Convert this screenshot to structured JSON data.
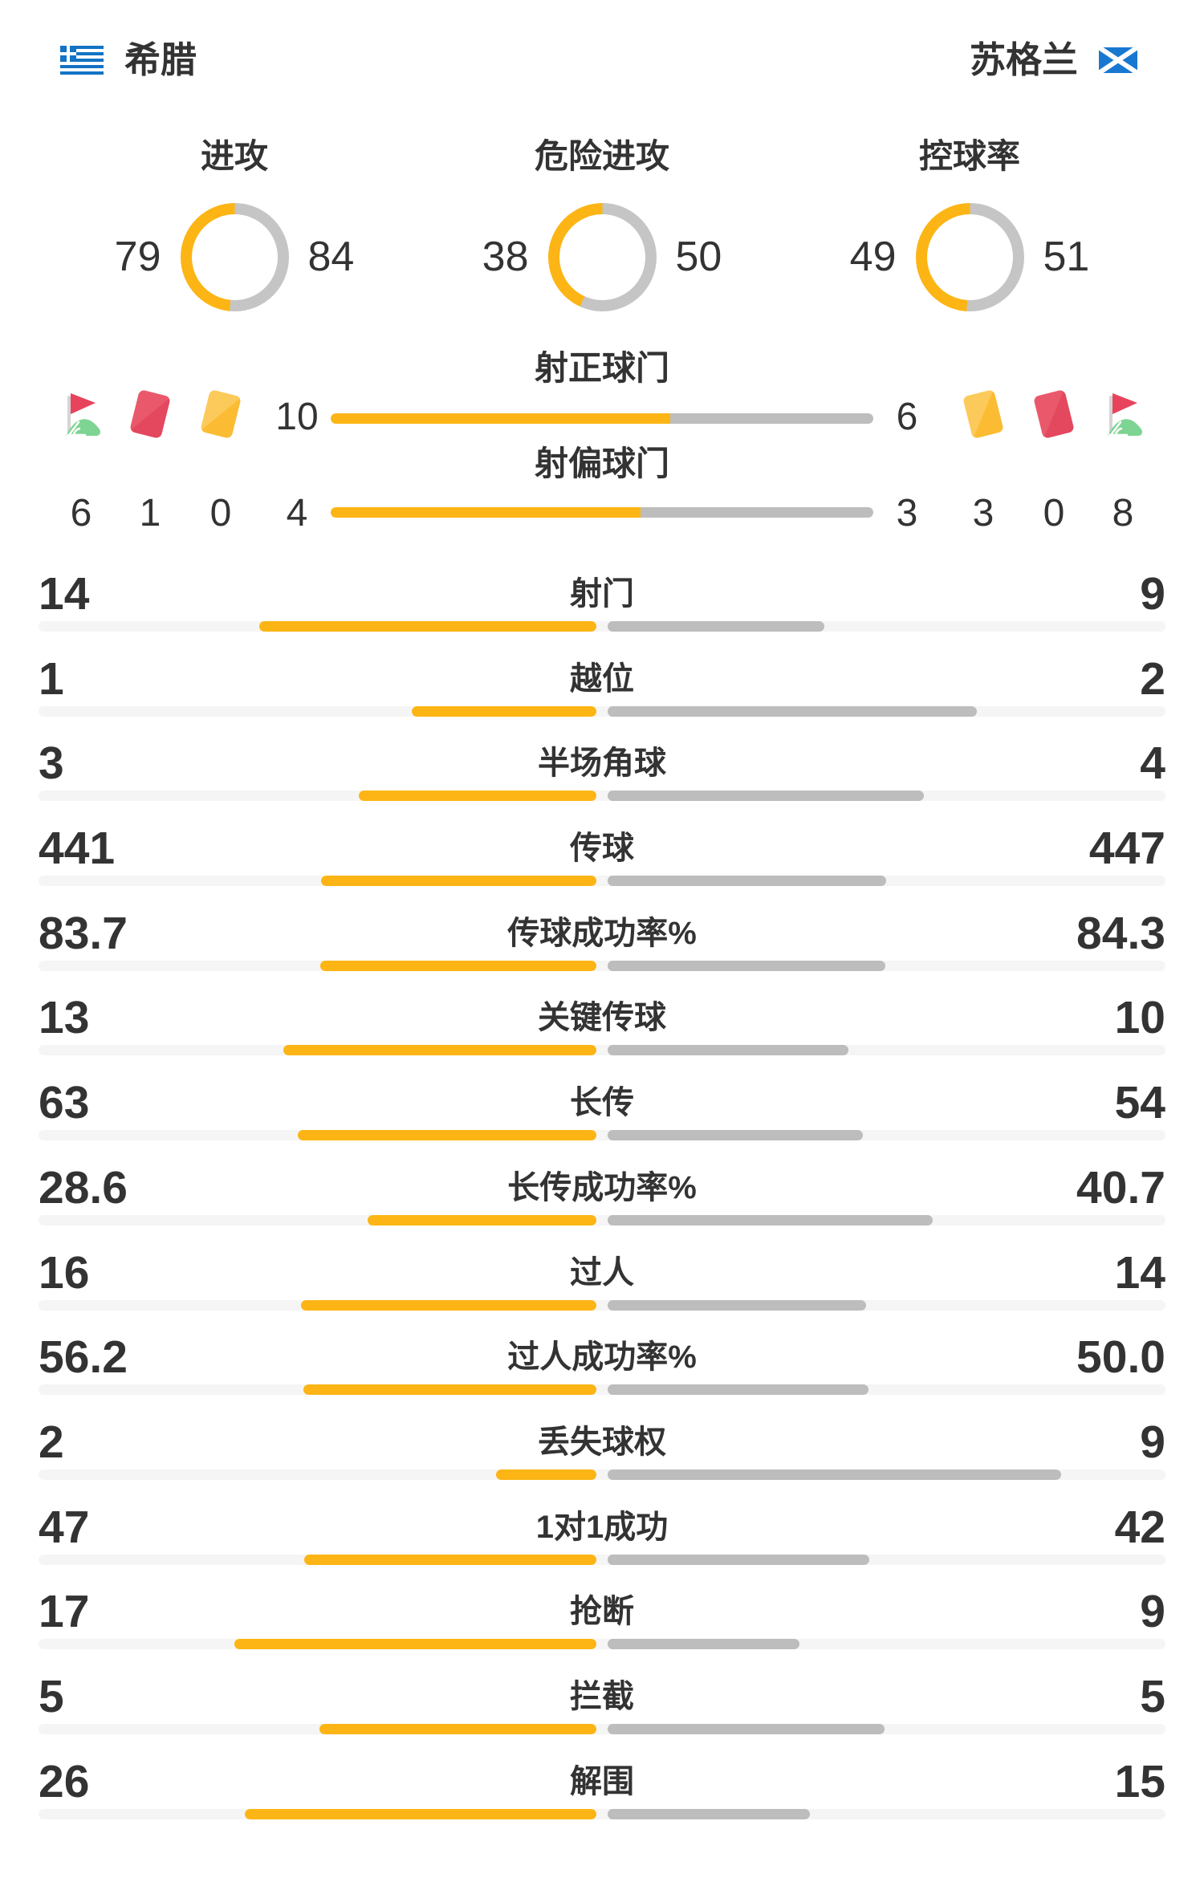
{
  "teams": {
    "home": {
      "name": "希腊"
    },
    "away": {
      "name": "苏格兰"
    }
  },
  "colors": {
    "home_bar": "#FCB515",
    "away_bar": "#BDBDBD",
    "away_donut": "#C5C5C5",
    "track": "#F5F5F5",
    "text": "#333333",
    "greece_flag_blue": "#1373C4",
    "scotland_flag_blue": "#1878D1",
    "card_red": "#E3485E",
    "card_red_light": "#E9596B",
    "card_yellow": "#FBBC33",
    "card_yellow_light": "#FCCA5B",
    "corner_flag_red": "#E8435C",
    "corner_flag_green": "#7ED492",
    "corner_flag_pole": "#D4D4D4"
  },
  "donuts": [
    {
      "label": "进攻",
      "home": 79,
      "away": 84
    },
    {
      "label": "危险进攻",
      "home": 38,
      "away": 50
    },
    {
      "label": "控球率",
      "home": 49,
      "away": 51
    }
  ],
  "shot_bars": [
    {
      "label": "射正球门",
      "home": 10,
      "away": 6
    },
    {
      "label": "射偏球门",
      "home": 4,
      "away": 3
    }
  ],
  "discipline": {
    "home": {
      "items": [
        {
          "icon": "corner-flag",
          "value": 6
        },
        {
          "icon": "red-card",
          "value": 1
        },
        {
          "icon": "yellow-card",
          "value": 0
        }
      ]
    },
    "away": {
      "items": [
        {
          "icon": "yellow-card",
          "value": 3
        },
        {
          "icon": "red-card",
          "value": 0
        },
        {
          "icon": "corner-flag",
          "value": 8
        }
      ]
    }
  },
  "stats": [
    {
      "label": "射门",
      "home": "14",
      "away": "9"
    },
    {
      "label": "越位",
      "home": "1",
      "away": "2"
    },
    {
      "label": "半场角球",
      "home": "3",
      "away": "4"
    },
    {
      "label": "传球",
      "home": "441",
      "away": "447"
    },
    {
      "label": "传球成功率%",
      "home": "83.7",
      "away": "84.3"
    },
    {
      "label": "关键传球",
      "home": "13",
      "away": "10"
    },
    {
      "label": "长传",
      "home": "63",
      "away": "54"
    },
    {
      "label": "长传成功率%",
      "home": "28.6",
      "away": "40.7"
    },
    {
      "label": "过人",
      "home": "16",
      "away": "14"
    },
    {
      "label": "过人成功率%",
      "home": "56.2",
      "away": "50.0"
    },
    {
      "label": "丢失球权",
      "home": "2",
      "away": "9"
    },
    {
      "label": "1对1成功",
      "home": "47",
      "away": "42"
    },
    {
      "label": "抢断",
      "home": "17",
      "away": "9"
    },
    {
      "label": "拦截",
      "home": "5",
      "away": "5"
    },
    {
      "label": "解围",
      "home": "26",
      "away": "15"
    }
  ],
  "chart_data": [
    {
      "type": "pie",
      "title": "进攻",
      "series": [
        {
          "name": "希腊",
          "value": 79
        },
        {
          "name": "苏格兰",
          "value": 84
        }
      ]
    },
    {
      "type": "pie",
      "title": "危险进攻",
      "series": [
        {
          "name": "希腊",
          "value": 38
        },
        {
          "name": "苏格兰",
          "value": 50
        }
      ]
    },
    {
      "type": "pie",
      "title": "控球率",
      "series": [
        {
          "name": "希腊",
          "value": 49
        },
        {
          "name": "苏格兰",
          "value": 51
        }
      ]
    },
    {
      "type": "bar",
      "title": "射正球门",
      "categories": [
        "希腊",
        "苏格兰"
      ],
      "values": [
        10,
        6
      ]
    },
    {
      "type": "bar",
      "title": "射偏球门",
      "categories": [
        "希腊",
        "苏格兰"
      ],
      "values": [
        4,
        3
      ]
    },
    {
      "type": "bar",
      "title": "比赛数据",
      "categories": [
        "射门",
        "越位",
        "半场角球",
        "传球",
        "传球成功率%",
        "关键传球",
        "长传",
        "长传成功率%",
        "过人",
        "过人成功率%",
        "丢失球权",
        "1对1成功",
        "抢断",
        "拦截",
        "解围"
      ],
      "series": [
        {
          "name": "希腊",
          "values": [
            14,
            1,
            3,
            441,
            83.7,
            13,
            63,
            28.6,
            16,
            56.2,
            2,
            47,
            17,
            5,
            26
          ]
        },
        {
          "name": "苏格兰",
          "values": [
            9,
            2,
            4,
            447,
            84.3,
            10,
            54,
            40.7,
            14,
            50.0,
            9,
            42,
            9,
            5,
            15
          ]
        }
      ]
    }
  ]
}
